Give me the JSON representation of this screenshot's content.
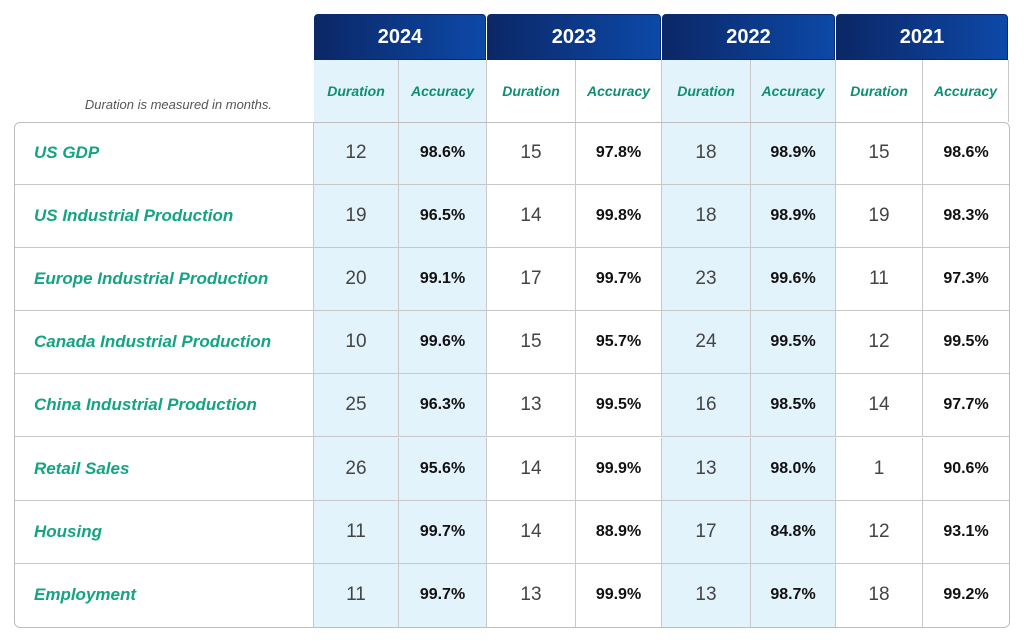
{
  "note": "Duration is measured in months.",
  "columns": [
    {
      "year": "2024",
      "duration": "Duration",
      "accuracy": "Accuracy"
    },
    {
      "year": "2023",
      "duration": "Duration",
      "accuracy": "Accuracy"
    },
    {
      "year": "2022",
      "duration": "Duration",
      "accuracy": "Accuracy"
    },
    {
      "year": "2021",
      "duration": "Duration",
      "accuracy": "Accuracy"
    }
  ],
  "rows": [
    {
      "label": "US GDP",
      "cells": [
        "12",
        "98.6%",
        "15",
        "97.8%",
        "18",
        "98.9%",
        "15",
        "98.6%"
      ]
    },
    {
      "label": "US Industrial Production",
      "cells": [
        "19",
        "96.5%",
        "14",
        "99.8%",
        "18",
        "98.9%",
        "19",
        "98.3%"
      ]
    },
    {
      "label": "Europe Industrial Production",
      "cells": [
        "20",
        "99.1%",
        "17",
        "99.7%",
        "23",
        "99.6%",
        "11",
        "97.3%"
      ]
    },
    {
      "label": "Canada Industrial Production",
      "cells": [
        "10",
        "99.6%",
        "15",
        "95.7%",
        "24",
        "99.5%",
        "12",
        "99.5%"
      ]
    },
    {
      "label": "China Industrial Production",
      "cells": [
        "25",
        "96.3%",
        "13",
        "99.5%",
        "16",
        "98.5%",
        "14",
        "97.7%"
      ]
    },
    {
      "label": "Retail Sales",
      "cells": [
        "26",
        "95.6%",
        "14",
        "99.9%",
        "13",
        "98.0%",
        "1",
        "90.6%"
      ]
    },
    {
      "label": "Housing",
      "cells": [
        "11",
        "99.7%",
        "14",
        "88.9%",
        "17",
        "84.8%",
        "12",
        "93.1%"
      ]
    },
    {
      "label": "Employment",
      "cells": [
        "11",
        "99.7%",
        "13",
        "99.9%",
        "13",
        "98.7%",
        "18",
        "99.2%"
      ]
    }
  ]
}
